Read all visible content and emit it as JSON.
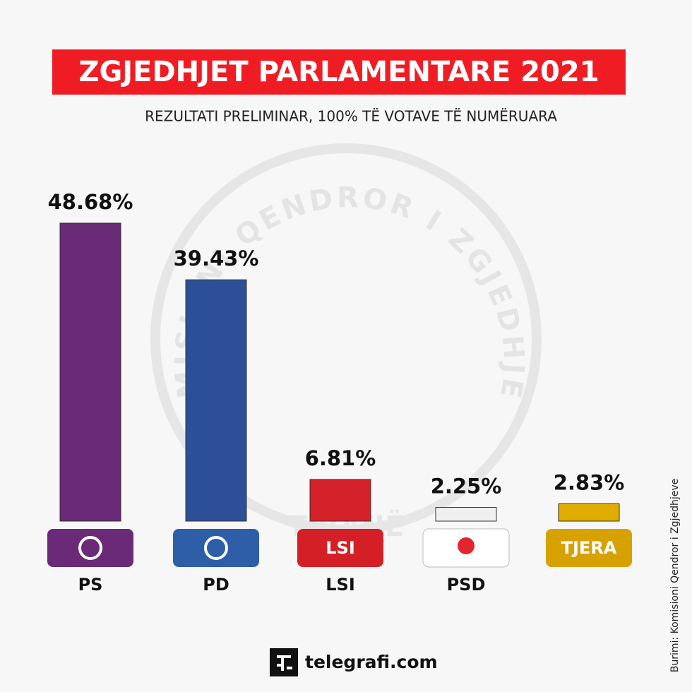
{
  "chart_data": {
    "type": "bar",
    "title": "ZGJEDHJET PARLAMENTARE 2021",
    "subtitle": "REZULTATI PRELIMINAR, 100% TË VOTAVE TË NUMËRUARA",
    "categories": [
      "PS",
      "PD",
      "LSI",
      "PSD",
      null
    ],
    "badge_labels": [
      null,
      null,
      "LSI",
      null,
      "TJERA"
    ],
    "values": [
      48.68,
      39.43,
      6.81,
      2.25,
      2.83
    ],
    "value_labels": [
      "48.68%",
      "39.43%",
      "6.81%",
      "2.25%",
      "2.83%"
    ],
    "colors": [
      "#6a2a78",
      "#2d4f98",
      "#d42029",
      "#f0f0f0",
      "#e0ac00"
    ],
    "badge_colors": [
      "#6a2a78",
      "#2e5ea8",
      "#d41f27",
      "#ffffff",
      "#d7a100"
    ],
    "watermark": "KOMISIONI QENDROR I ZGJEDHJEVE",
    "watermark_city": "TIRANË",
    "source": "Burimi: Komisioni Qendror i Zgjedhjeve",
    "brand": "telegrafi.com"
  }
}
